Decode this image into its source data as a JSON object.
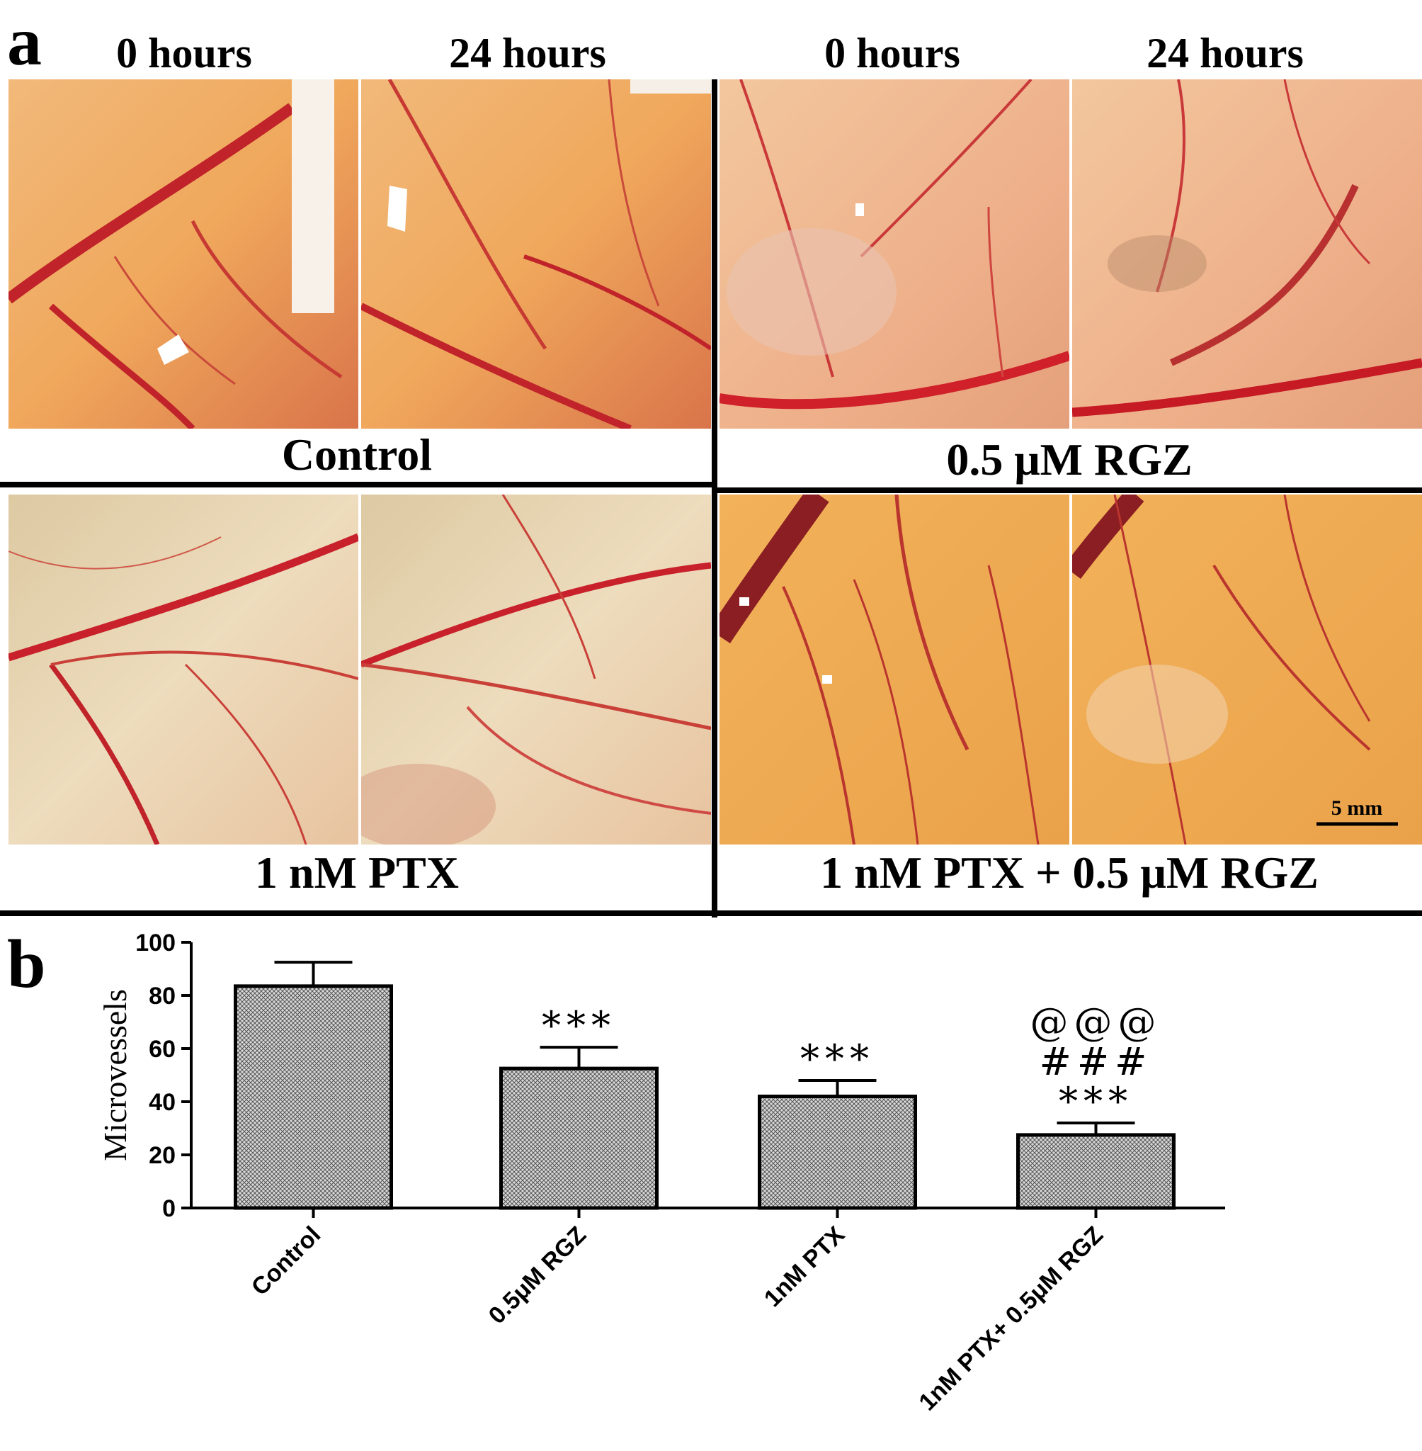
{
  "panel_a": {
    "letter": "a",
    "time_labels": [
      "0 hours",
      "24 hours",
      "0 hours",
      "24 hours"
    ],
    "groups": [
      "Control",
      "0.5 μM RGZ",
      "1 nM PTX",
      "1 nM PTX + 0.5 μM RGZ"
    ],
    "scale_bar_label": "5 mm"
  },
  "panel_b": {
    "letter": "b"
  },
  "chart_data": {
    "type": "bar",
    "ylabel": "Microvessels",
    "xlabel": "",
    "ylim": [
      0,
      100
    ],
    "yticks": [
      0,
      20,
      40,
      60,
      80,
      100
    ],
    "categories": [
      "Control",
      "0.5μM RGZ",
      "1nM PTX",
      "1nM PTX+ 0.5μM RGZ"
    ],
    "values": [
      83.5,
      52.5,
      42,
      27.5
    ],
    "errors": [
      9,
      8,
      6,
      4.5
    ],
    "significance": [
      [],
      [
        "***"
      ],
      [
        "***"
      ],
      [
        "@@@",
        "###",
        "***"
      ]
    ],
    "bar_fill": "crosshatch gray",
    "grid": false,
    "legend": "none"
  }
}
